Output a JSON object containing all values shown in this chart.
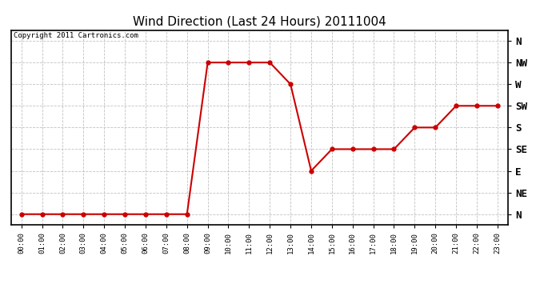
{
  "title": "Wind Direction (Last 24 Hours) 20111004",
  "copyright_text": "Copyright 2011 Cartronics.com",
  "background_color": "#ffffff",
  "line_color": "#cc0000",
  "grid_color": "#bbbbbb",
  "y_labels": [
    "N",
    "NE",
    "E",
    "SE",
    "S",
    "SW",
    "W",
    "NW",
    "N"
  ],
  "hours": [
    0,
    1,
    2,
    3,
    4,
    5,
    6,
    7,
    8,
    9,
    10,
    11,
    12,
    13,
    14,
    15,
    16,
    17,
    18,
    19,
    20,
    21,
    22,
    23
  ],
  "wind_values": [
    0,
    0,
    0,
    0,
    0,
    0,
    0,
    0,
    0,
    7,
    7,
    7,
    7,
    6,
    2,
    3,
    3,
    3,
    3,
    4,
    4,
    5,
    5,
    5
  ],
  "xlim": [
    -0.5,
    23.5
  ],
  "ylim": [
    -0.5,
    8.5
  ]
}
